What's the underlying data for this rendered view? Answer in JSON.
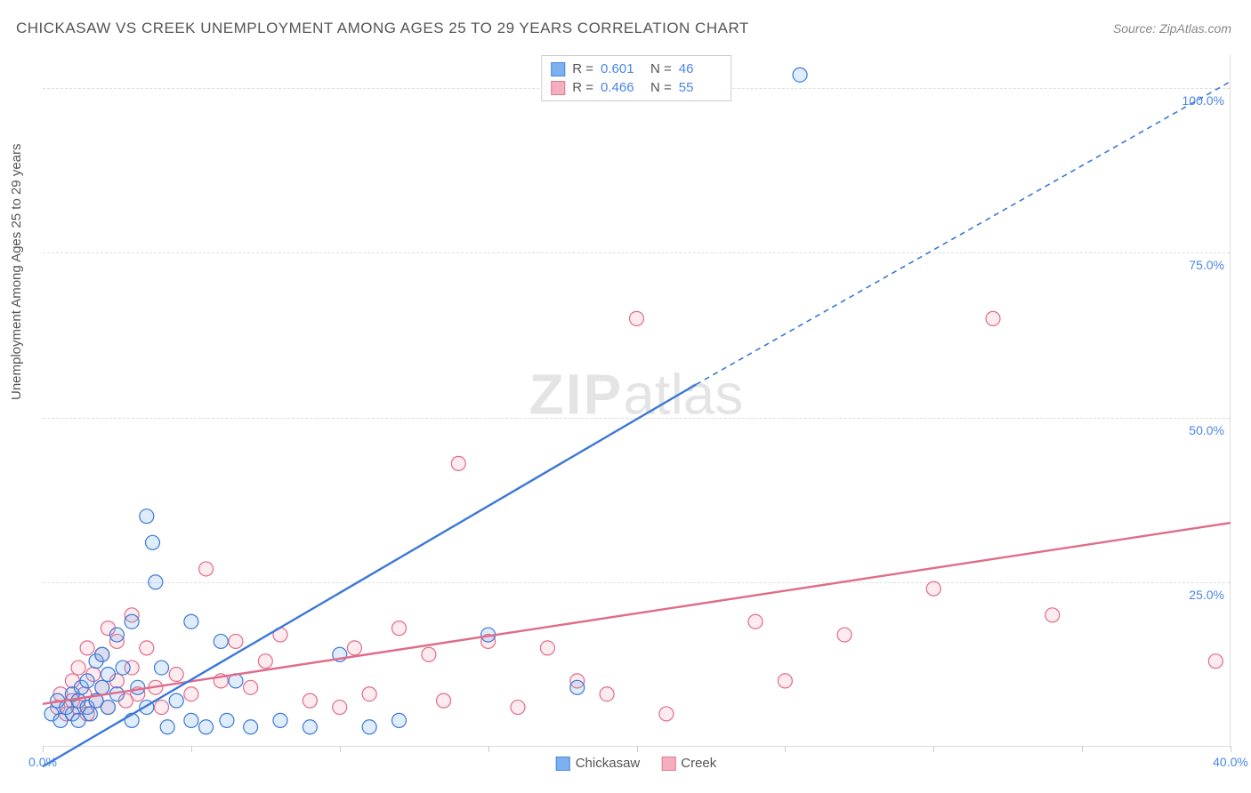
{
  "title": "CHICKASAW VS CREEK UNEMPLOYMENT AMONG AGES 25 TO 29 YEARS CORRELATION CHART",
  "source": "Source: ZipAtlas.com",
  "ylabel": "Unemployment Among Ages 25 to 29 years",
  "watermark": {
    "bold": "ZIP",
    "rest": "atlas"
  },
  "chart": {
    "type": "scatter",
    "xlim": [
      0,
      40
    ],
    "ylim": [
      0,
      105
    ],
    "x_ticks": [
      0,
      5,
      10,
      15,
      20,
      25,
      30,
      35,
      40
    ],
    "x_tick_labels": {
      "0": "0.0%",
      "40": "40.0%"
    },
    "y_grid": [
      25,
      50,
      75,
      100
    ],
    "y_tick_labels": {
      "25": "25.0%",
      "50": "50.0%",
      "75": "75.0%",
      "100": "100.0%"
    },
    "background_color": "#ffffff",
    "grid_color": "#dddddd",
    "axis_label_color": "#4a86e8",
    "marker_radius": 8,
    "marker_stroke_width": 1.2,
    "marker_fill_opacity": 0.22,
    "trend_line_width": 2.4,
    "trend_dash_width": 1.6
  },
  "series": {
    "chickasaw": {
      "label": "Chickasaw",
      "color": "#6fa8ee",
      "stroke": "#3b78d8",
      "R": "0.601",
      "N": "46",
      "trend": {
        "x1": 0,
        "y1": -3,
        "x2_solid": 22,
        "y2_solid": 55,
        "x2_dash": 40,
        "y2_dash": 101
      },
      "points": [
        [
          0.3,
          5
        ],
        [
          0.5,
          7
        ],
        [
          0.6,
          4
        ],
        [
          0.8,
          6
        ],
        [
          1.0,
          8
        ],
        [
          1.0,
          5
        ],
        [
          1.2,
          7
        ],
        [
          1.2,
          4
        ],
        [
          1.3,
          9
        ],
        [
          1.5,
          6
        ],
        [
          1.5,
          10
        ],
        [
          1.6,
          5
        ],
        [
          1.8,
          13
        ],
        [
          1.8,
          7
        ],
        [
          2.0,
          9
        ],
        [
          2.0,
          14
        ],
        [
          2.2,
          6
        ],
        [
          2.2,
          11
        ],
        [
          2.5,
          8
        ],
        [
          2.5,
          17
        ],
        [
          2.7,
          12
        ],
        [
          3.0,
          4
        ],
        [
          3.0,
          19
        ],
        [
          3.2,
          9
        ],
        [
          3.5,
          6
        ],
        [
          3.5,
          35
        ],
        [
          3.8,
          25
        ],
        [
          3.7,
          31
        ],
        [
          4.0,
          12
        ],
        [
          4.2,
          3
        ],
        [
          4.5,
          7
        ],
        [
          5.0,
          4
        ],
        [
          5.0,
          19
        ],
        [
          5.5,
          3
        ],
        [
          6.0,
          16
        ],
        [
          6.2,
          4
        ],
        [
          6.5,
          10
        ],
        [
          7.0,
          3
        ],
        [
          8.0,
          4
        ],
        [
          9.0,
          3
        ],
        [
          10.0,
          14
        ],
        [
          11.0,
          3
        ],
        [
          12.0,
          4
        ],
        [
          15.0,
          17
        ],
        [
          18.0,
          9
        ],
        [
          25.5,
          102
        ]
      ]
    },
    "creek": {
      "label": "Creek",
      "color": "#f4a6b7",
      "stroke": "#e06c88",
      "R": "0.466",
      "N": "55",
      "trend": {
        "x1": 0,
        "y1": 6.5,
        "x2_solid": 40,
        "y2_solid": 34,
        "x2_dash": 40,
        "y2_dash": 34
      },
      "points": [
        [
          0.5,
          6
        ],
        [
          0.6,
          8
        ],
        [
          0.8,
          5
        ],
        [
          1.0,
          7
        ],
        [
          1.0,
          10
        ],
        [
          1.2,
          6
        ],
        [
          1.2,
          12
        ],
        [
          1.4,
          8
        ],
        [
          1.5,
          15
        ],
        [
          1.5,
          5
        ],
        [
          1.7,
          11
        ],
        [
          1.8,
          7
        ],
        [
          2.0,
          9
        ],
        [
          2.0,
          14
        ],
        [
          2.2,
          6
        ],
        [
          2.2,
          18
        ],
        [
          2.5,
          10
        ],
        [
          2.5,
          16
        ],
        [
          2.8,
          7
        ],
        [
          3.0,
          12
        ],
        [
          3.0,
          20
        ],
        [
          3.2,
          8
        ],
        [
          3.5,
          15
        ],
        [
          3.8,
          9
        ],
        [
          4.0,
          6
        ],
        [
          4.5,
          11
        ],
        [
          5.0,
          8
        ],
        [
          5.5,
          27
        ],
        [
          6.0,
          10
        ],
        [
          6.5,
          16
        ],
        [
          7.0,
          9
        ],
        [
          7.5,
          13
        ],
        [
          8.0,
          17
        ],
        [
          9.0,
          7
        ],
        [
          10.0,
          6
        ],
        [
          10.5,
          15
        ],
        [
          11.0,
          8
        ],
        [
          12.0,
          18
        ],
        [
          13.0,
          14
        ],
        [
          14.0,
          43
        ],
        [
          15.0,
          16
        ],
        [
          16.0,
          6
        ],
        [
          17.0,
          15
        ],
        [
          18.0,
          10
        ],
        [
          19.0,
          8
        ],
        [
          20.0,
          65
        ],
        [
          21.0,
          5
        ],
        [
          24.0,
          19
        ],
        [
          25.0,
          10
        ],
        [
          27.0,
          17
        ],
        [
          30.0,
          24
        ],
        [
          32.0,
          65
        ],
        [
          34.0,
          20
        ],
        [
          39.5,
          13
        ],
        [
          13.5,
          7
        ]
      ]
    }
  },
  "legend_bottom": [
    {
      "key": "chickasaw"
    },
    {
      "key": "creek"
    }
  ]
}
